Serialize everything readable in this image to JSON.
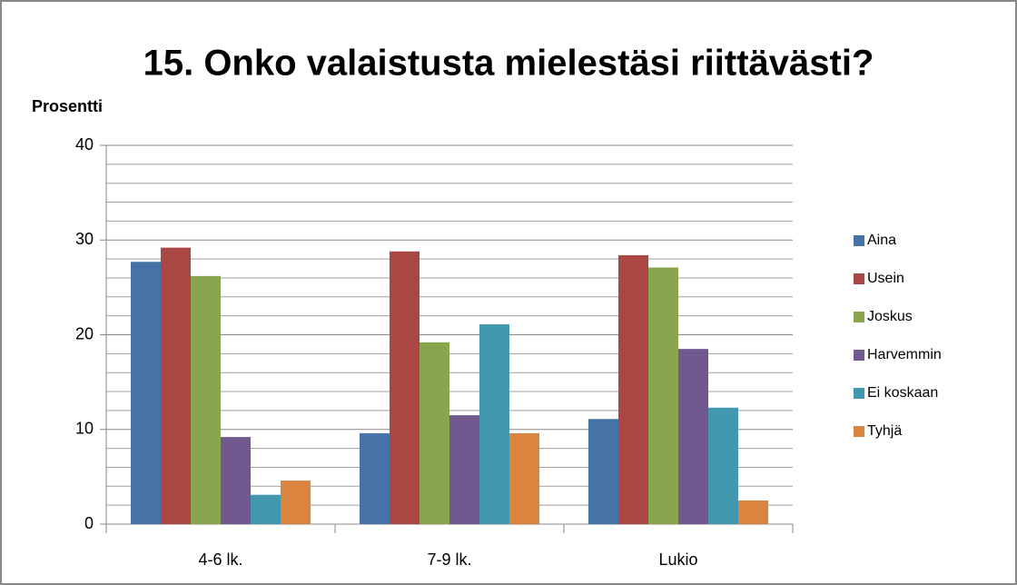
{
  "chart_data": {
    "type": "bar",
    "title": "15. Onko valaistusta mielestäsi riittävästi?",
    "y_label": "Prosentti",
    "categories": [
      "4-6 lk.",
      "7-9 lk.",
      "Lukio"
    ],
    "series": [
      {
        "name": "Aina",
        "color": "#4572a7",
        "values": [
          27.7,
          9.6,
          11.1
        ]
      },
      {
        "name": "Usein",
        "color": "#aa4643",
        "values": [
          29.2,
          28.8,
          28.4
        ]
      },
      {
        "name": "Joskus",
        "color": "#89a54e",
        "values": [
          26.2,
          19.2,
          27.1
        ]
      },
      {
        "name": "Harvemmin",
        "color": "#71588f",
        "values": [
          9.2,
          11.5,
          18.5
        ]
      },
      {
        "name": "Ei koskaan",
        "color": "#4198af",
        "values": [
          3.1,
          21.1,
          12.3
        ]
      },
      {
        "name": "Tyhjä",
        "color": "#db843d",
        "values": [
          4.6,
          9.6,
          2.5
        ]
      }
    ],
    "ylim": [
      0,
      40
    ],
    "yticks": [
      0,
      10,
      20,
      30,
      40
    ],
    "yticks_minor": [
      2,
      4,
      6,
      8,
      12,
      14,
      16,
      18,
      22,
      24,
      26,
      28,
      32,
      34,
      36,
      38
    ],
    "grid": true,
    "legend": "right"
  }
}
